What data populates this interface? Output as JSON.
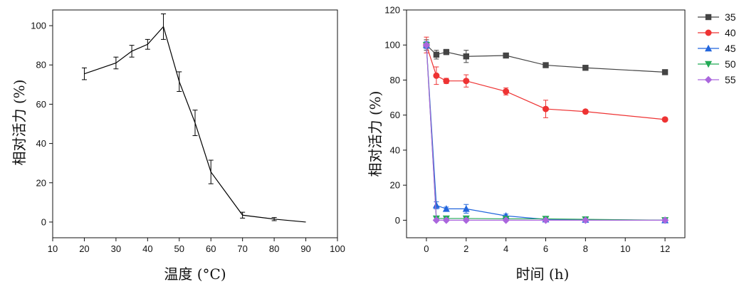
{
  "chart_data": [
    {
      "type": "line",
      "xlabel": "温度 (°C)",
      "ylabel": "相对活力 (%)",
      "xlim": [
        10,
        100
      ],
      "ylim": [
        -8,
        108
      ],
      "xticks": [
        10,
        20,
        30,
        40,
        50,
        60,
        70,
        80,
        90,
        100
      ],
      "yticks": [
        0,
        20,
        40,
        60,
        80,
        100
      ],
      "legend": "none",
      "series": [
        {
          "color": "#000000",
          "marker": "none",
          "x": [
            20,
            30,
            35,
            40,
            45,
            50,
            55,
            60,
            70,
            80,
            90
          ],
          "y": [
            75.5,
            81,
            87,
            90.5,
            99.5,
            71.5,
            50.5,
            25.5,
            3.5,
            1.5,
            0
          ],
          "err": [
            3,
            3,
            3,
            2.5,
            6.5,
            5,
            6.5,
            6,
            1.5,
            0.8,
            0
          ]
        }
      ]
    },
    {
      "type": "line",
      "xlabel": "时间 (h)",
      "ylabel": "相对活力 (%)",
      "xlim": [
        -1,
        13
      ],
      "ylim": [
        -10,
        120
      ],
      "xticks": [
        0,
        2,
        4,
        6,
        8,
        10,
        12
      ],
      "yticks": [
        0,
        20,
        40,
        60,
        80,
        100,
        120
      ],
      "legend": "right",
      "series": [
        {
          "name": "35",
          "color": "#444444",
          "marker": "square",
          "x": [
            0,
            0.5,
            1,
            2,
            4,
            6,
            8,
            12
          ],
          "y": [
            100,
            94.5,
            96,
            93.5,
            94,
            88.5,
            87,
            84.5
          ],
          "err": [
            3,
            2.5,
            1.5,
            3.5,
            1,
            1,
            1,
            1
          ]
        },
        {
          "name": "40",
          "color": "#ee3333",
          "marker": "circle",
          "x": [
            0,
            0.5,
            1,
            2,
            4,
            6,
            8,
            12
          ],
          "y": [
            100,
            82.5,
            79.5,
            79.5,
            73.5,
            63.5,
            62,
            57.5
          ],
          "err": [
            4.5,
            5,
            1.5,
            3.5,
            2,
            5,
            1,
            1
          ]
        },
        {
          "name": "45",
          "color": "#2266dd",
          "marker": "triangle-up",
          "x": [
            0,
            0.5,
            1,
            2,
            4,
            6,
            8,
            12
          ],
          "y": [
            100,
            8.5,
            6.5,
            6.5,
            2.5,
            0.5,
            0.3,
            0
          ],
          "err": [
            2,
            2,
            1,
            2.5,
            1,
            0.5,
            0.3,
            0.2
          ]
        },
        {
          "name": "50",
          "color": "#22aa55",
          "marker": "triangle-down",
          "x": [
            0,
            0.5,
            1,
            2,
            4,
            6,
            8,
            12
          ],
          "y": [
            100,
            1,
            1,
            1,
            0.8,
            0.8,
            0.5,
            0
          ],
          "err": [
            1,
            0.5,
            0.5,
            0.5,
            0.3,
            0.3,
            0.3,
            0.2
          ]
        },
        {
          "name": "55",
          "color": "#aa66dd",
          "marker": "diamond",
          "x": [
            0,
            0.5,
            1,
            2,
            4,
            6,
            8,
            12
          ],
          "y": [
            100,
            0,
            0,
            0,
            0,
            0,
            0,
            0
          ],
          "err": [
            1,
            0.3,
            0.3,
            0.3,
            0.3,
            0.3,
            0.3,
            0.3
          ]
        }
      ]
    }
  ]
}
